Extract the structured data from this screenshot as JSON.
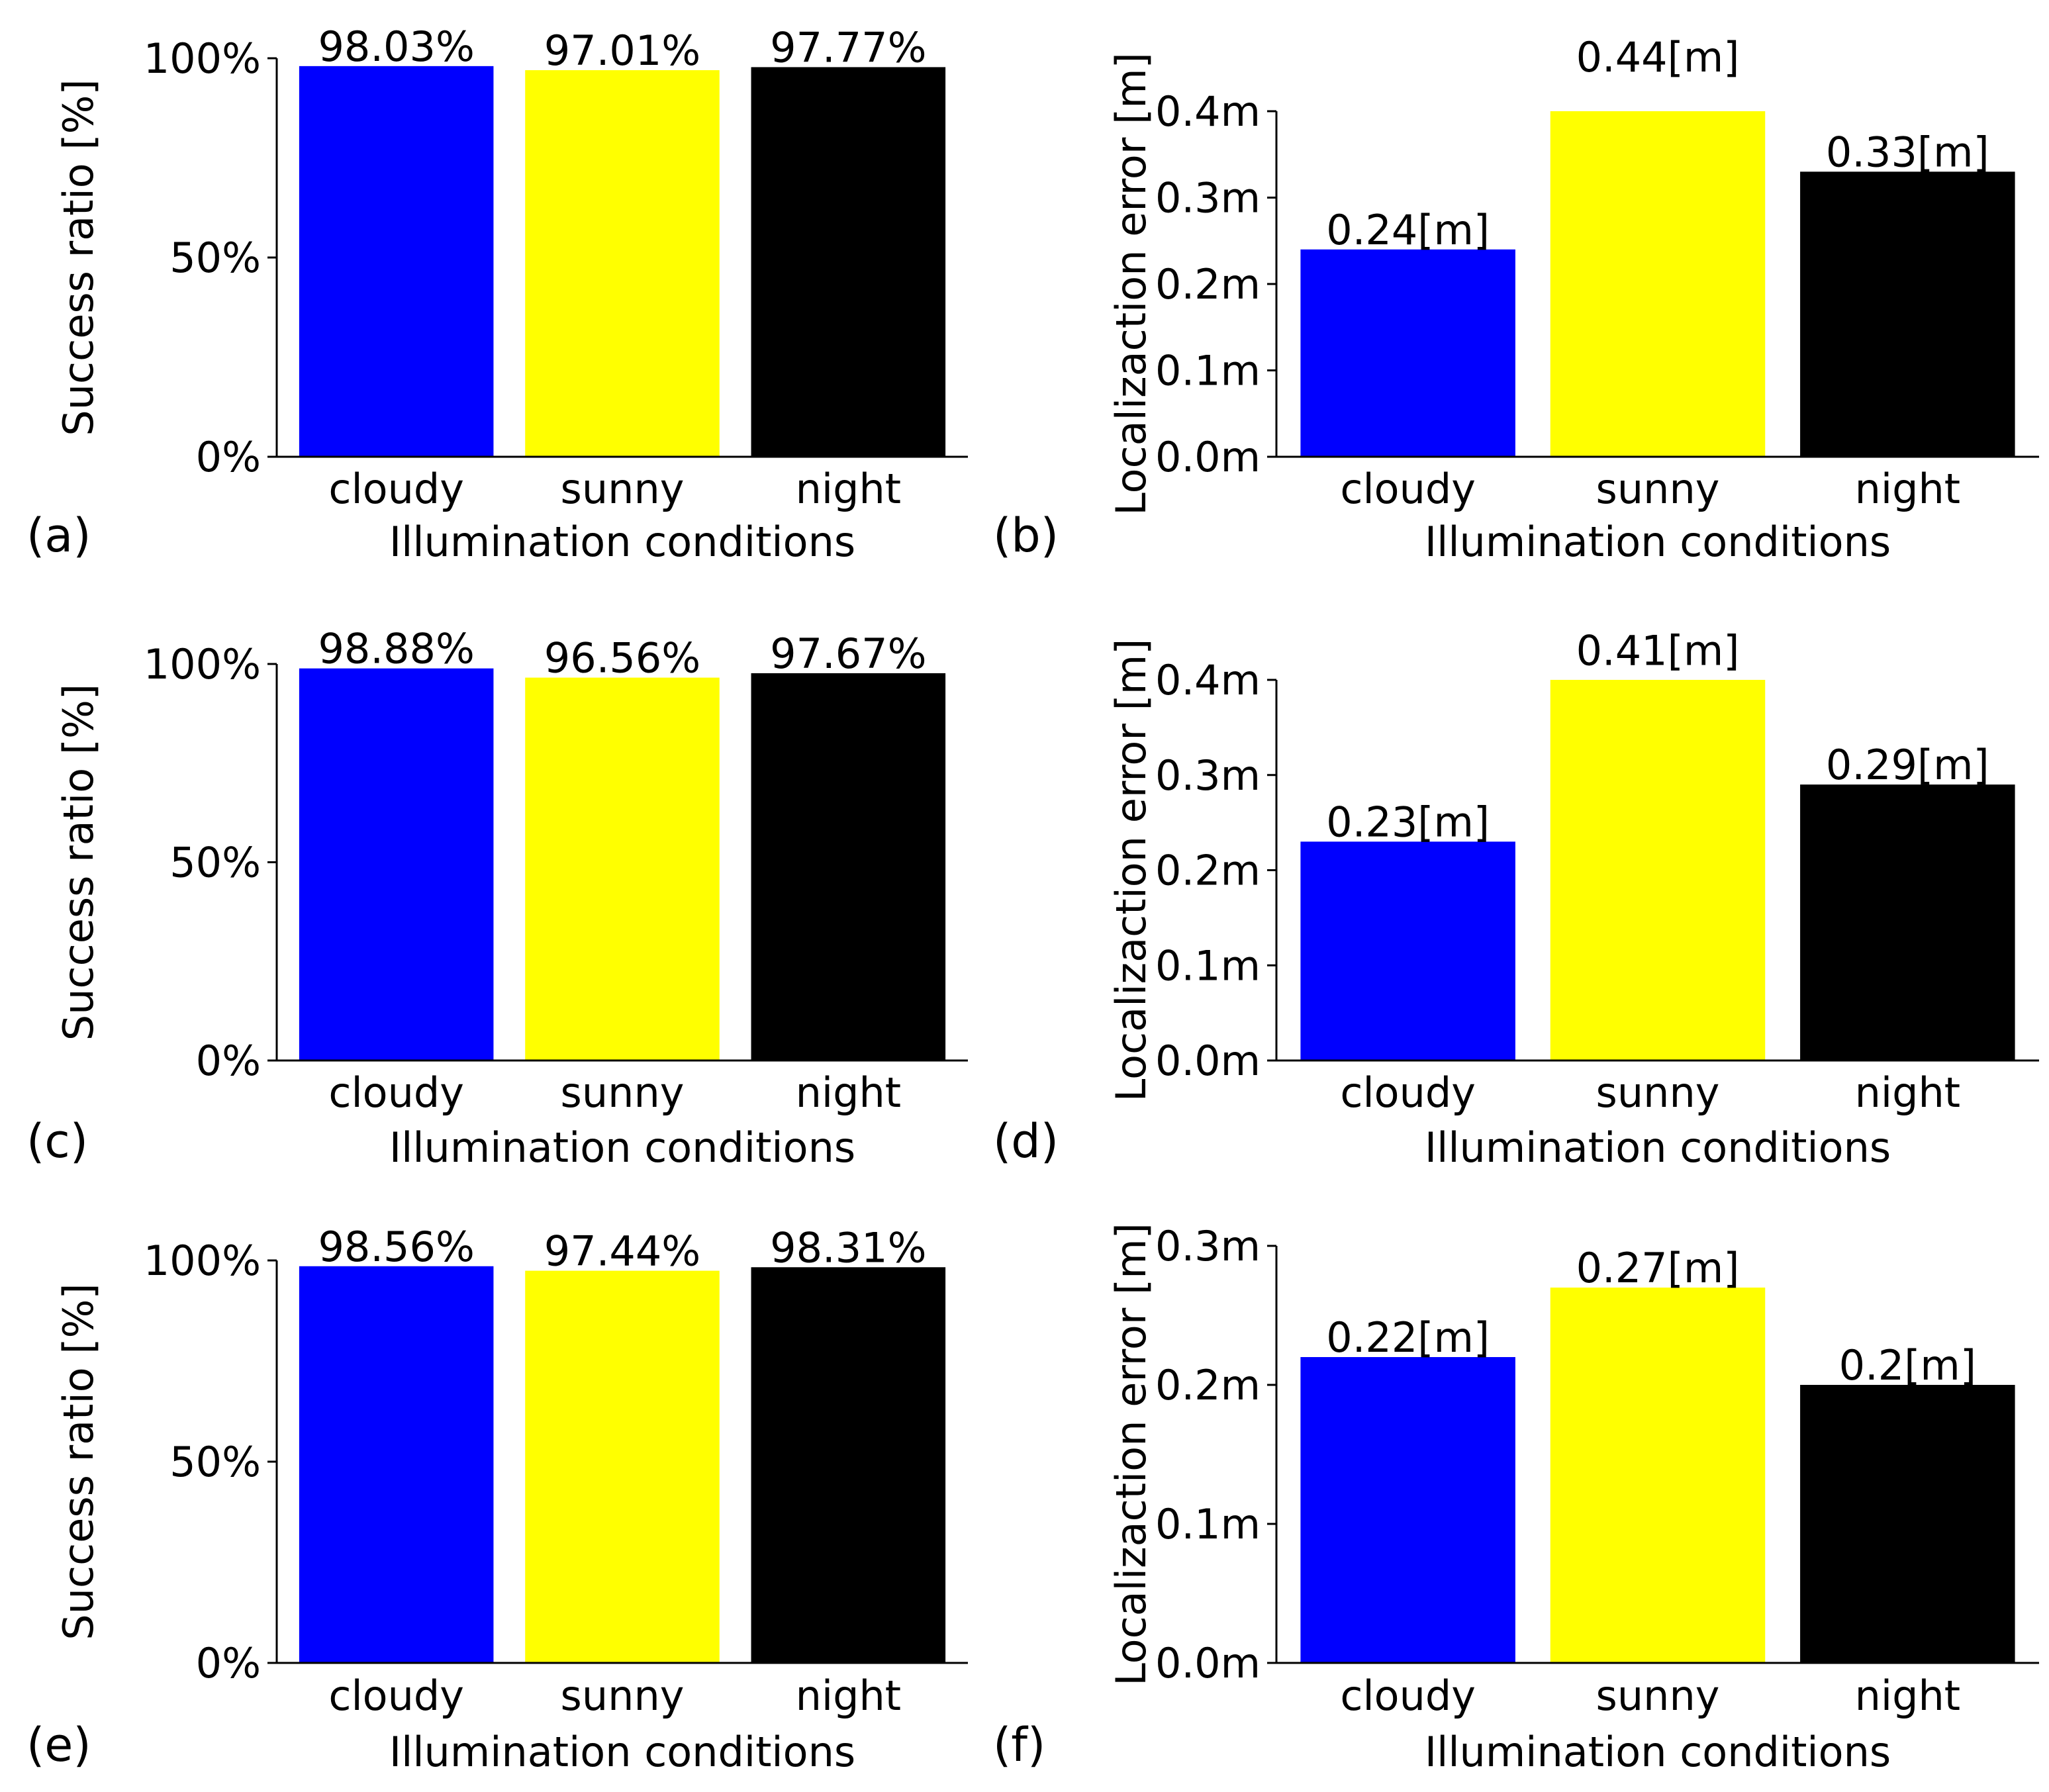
{
  "figure": {
    "colors": {
      "cloudy": "#0000ff",
      "sunny": "#ffff00",
      "night": "#000000"
    }
  },
  "chart_data": [
    {
      "id": "a",
      "panel_label": "(a)",
      "type": "bar",
      "categories": [
        "cloudy",
        "sunny",
        "night"
      ],
      "values": [
        98.03,
        97.01,
        97.77
      ],
      "data_labels": [
        "98.03%",
        "97.01%",
        "97.77%"
      ],
      "xlabel": "Illumination conditions",
      "ylabel": "Success ratio [%]",
      "ylim": [
        0,
        100
      ],
      "yticks": [
        0,
        50,
        100
      ],
      "ytick_labels": [
        "0%",
        "50%",
        "100%"
      ]
    },
    {
      "id": "b",
      "panel_label": "(b)",
      "type": "bar",
      "categories": [
        "cloudy",
        "sunny",
        "night"
      ],
      "values": [
        0.24,
        0.44,
        0.33
      ],
      "data_labels": [
        "0.24[m]",
        "0.44[m]",
        "0.33[m]"
      ],
      "xlabel": "Illumination conditions",
      "ylabel": "Localizaction error [m]",
      "ylim": [
        0,
        0.4
      ],
      "yticks": [
        0,
        0.1,
        0.2,
        0.3,
        0.4
      ],
      "ytick_labels": [
        "0.0m",
        "0.1m",
        "0.2m",
        "0.3m",
        "0.4m"
      ]
    },
    {
      "id": "c",
      "panel_label": "(c)",
      "type": "bar",
      "categories": [
        "cloudy",
        "sunny",
        "night"
      ],
      "values": [
        98.88,
        96.56,
        97.67
      ],
      "data_labels": [
        "98.88%",
        "96.56%",
        "97.67%"
      ],
      "xlabel": "Illumination conditions",
      "ylabel": "Success ratio [%]",
      "ylim": [
        0,
        100
      ],
      "yticks": [
        0,
        50,
        100
      ],
      "ytick_labels": [
        "0%",
        "50%",
        "100%"
      ]
    },
    {
      "id": "d",
      "panel_label": "(d)",
      "type": "bar",
      "categories": [
        "cloudy",
        "sunny",
        "night"
      ],
      "values": [
        0.23,
        0.41,
        0.29
      ],
      "data_labels": [
        "0.23[m]",
        "0.41[m]",
        "0.29[m]"
      ],
      "xlabel": "Illumination conditions",
      "ylabel": "Localizaction error [m]",
      "ylim": [
        0,
        0.4
      ],
      "yticks": [
        0,
        0.1,
        0.2,
        0.3,
        0.4
      ],
      "ytick_labels": [
        "0.0m",
        "0.1m",
        "0.2m",
        "0.3m",
        "0.4m"
      ]
    },
    {
      "id": "e",
      "panel_label": "(e)",
      "type": "bar",
      "categories": [
        "cloudy",
        "sunny",
        "night"
      ],
      "values": [
        98.56,
        97.44,
        98.31
      ],
      "data_labels": [
        "98.56%",
        "97.44%",
        "98.31%"
      ],
      "xlabel": "Illumination conditions",
      "ylabel": "Success ratio [%]",
      "ylim": [
        0,
        100
      ],
      "yticks": [
        0,
        50,
        100
      ],
      "ytick_labels": [
        "0%",
        "50%",
        "100%"
      ]
    },
    {
      "id": "f",
      "panel_label": "(f)",
      "type": "bar",
      "categories": [
        "cloudy",
        "sunny",
        "night"
      ],
      "values": [
        0.22,
        0.27,
        0.2
      ],
      "data_labels": [
        "0.22[m]",
        "0.27[m]",
        "0.2[m]"
      ],
      "xlabel": "Illumination conditions",
      "ylabel": "Localizaction error [m]",
      "ylim": [
        0,
        0.3
      ],
      "yticks": [
        0,
        0.1,
        0.2,
        0.3
      ],
      "ytick_labels": [
        "0.0m",
        "0.1m",
        "0.2m",
        "0.3m"
      ]
    }
  ]
}
